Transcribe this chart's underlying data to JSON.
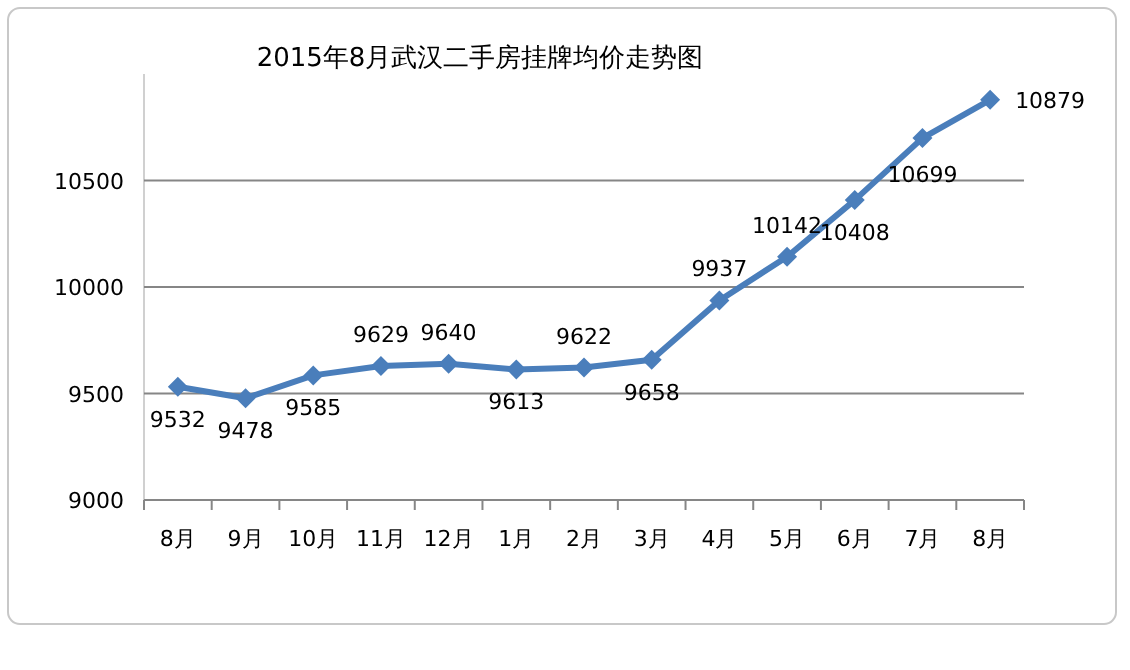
{
  "chart_data": {
    "type": "line",
    "title": "2015年8月武汉二手房挂牌均价走势图",
    "categories": [
      "8月",
      "9月",
      "10月",
      "11月",
      "12月",
      "1月",
      "2月",
      "3月",
      "4月",
      "5月",
      "6月",
      "7月",
      "8月"
    ],
    "series": [
      {
        "color": "#4a7ebb",
        "values": [
          9532,
          9478,
          9585,
          9629,
          9640,
          9613,
          9622,
          9658,
          9937,
          10142,
          10408,
          10699,
          10879
        ]
      }
    ],
    "ylim": [
      9000,
      11000
    ],
    "yticks": [
      9000,
      9500,
      10000,
      10500
    ],
    "grid": "y",
    "marker": "diamond",
    "data_labels": true
  }
}
